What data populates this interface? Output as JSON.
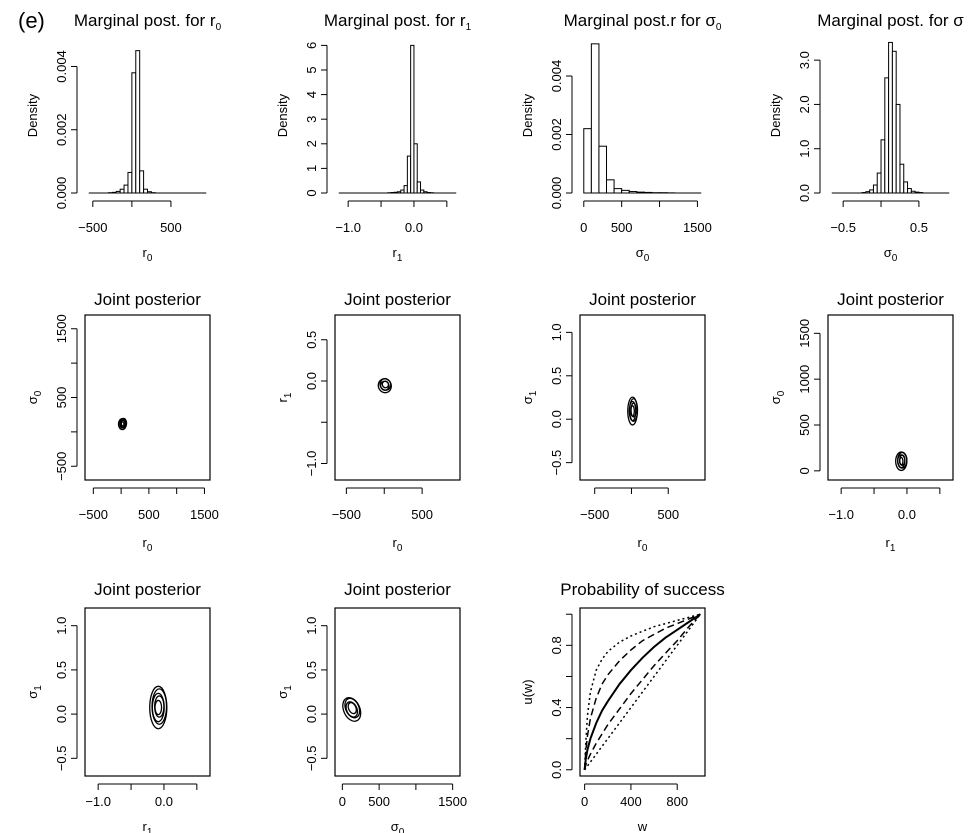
{
  "figure": {
    "panel_label": "(e)",
    "colors": {
      "ink": "#000000",
      "background": "#ffffff"
    }
  },
  "chart_data": [
    {
      "id": "hist_r0",
      "type": "bar",
      "title": "Marginal post. for r",
      "title_sub": "0",
      "xlabel": "r",
      "xlabel_sub": "0",
      "ylabel": "Density",
      "xlim": [
        -600,
        1000
      ],
      "ylim": [
        0,
        0.0049
      ],
      "xticks": [
        -500,
        0,
        500
      ],
      "xtick_labels": [
        "−500",
        "",
        "500"
      ],
      "yticks": [
        0,
        0.002,
        0.004
      ],
      "ytick_labels": [
        "0.000",
        "0.002",
        "0.004"
      ],
      "bin_width": 50,
      "bins": [
        -300,
        -250,
        -200,
        -150,
        -100,
        -50,
        0,
        50,
        100,
        150,
        200,
        250
      ],
      "values": [
        1e-05,
        2e-05,
        5e-05,
        0.00012,
        0.00025,
        0.00065,
        0.0038,
        0.0045,
        0.0007,
        0.00012,
        4e-05,
        1e-05
      ]
    },
    {
      "id": "hist_r1",
      "type": "bar",
      "title": "Marginal post. for r",
      "title_sub": "1",
      "xlabel": "r",
      "xlabel_sub": "1",
      "ylabel": "Density",
      "xlim": [
        -1.2,
        0.7
      ],
      "ylim": [
        0,
        6.3
      ],
      "xticks": [
        -1.0,
        -0.5,
        0,
        0.5
      ],
      "xtick_labels": [
        "−1.0",
        "",
        "0.0",
        ""
      ],
      "yticks": [
        0,
        1,
        2,
        3,
        4,
        5,
        6
      ],
      "ytick_labels": [
        "0",
        "1",
        "2",
        "3",
        "4",
        "5",
        "6"
      ],
      "bin_width": 0.05,
      "bins": [
        -0.4,
        -0.35,
        -0.3,
        -0.25,
        -0.2,
        -0.15,
        -0.1,
        -0.05,
        0,
        0.05,
        0.1,
        0.15,
        0.2,
        0.25
      ],
      "values": [
        0.01,
        0.02,
        0.03,
        0.05,
        0.12,
        0.3,
        1.5,
        6.0,
        2.0,
        0.45,
        0.12,
        0.05,
        0.02,
        0.01
      ]
    },
    {
      "id": "hist_s0",
      "type": "bar",
      "title": "Marginal post.r for  σ",
      "title_sub": "0",
      "xlabel": "σ",
      "xlabel_sub": "0",
      "ylabel": "Density",
      "xlim": [
        -50,
        1600
      ],
      "ylim": [
        0,
        0.0053
      ],
      "xticks": [
        0,
        500,
        1000,
        1500
      ],
      "xtick_labels": [
        "0",
        "500",
        "",
        "1500"
      ],
      "yticks": [
        0,
        0.002,
        0.004
      ],
      "ytick_labels": [
        "0.000",
        "0.002",
        "0.004"
      ],
      "bin_width": 100,
      "bins": [
        0,
        100,
        200,
        300,
        400,
        500,
        600,
        700,
        800,
        900,
        1000,
        1100
      ],
      "values": [
        0.0022,
        0.0051,
        0.0016,
        0.00045,
        0.00015,
        9e-05,
        5e-05,
        3e-05,
        2e-05,
        1e-05,
        1e-05,
        5e-06
      ]
    },
    {
      "id": "hist_s1",
      "type": "bar",
      "title": "Marginal post. for  σ",
      "title_sub": "",
      "xlabel": "σ",
      "xlabel_sub": "0",
      "ylabel": "Density",
      "xlim": [
        -0.7,
        0.95
      ],
      "ylim": [
        0,
        3.5
      ],
      "xticks": [
        -0.5,
        0,
        0.5
      ],
      "xtick_labels": [
        "−0.5",
        "",
        "0.5"
      ],
      "yticks": [
        0,
        1,
        2,
        3
      ],
      "ytick_labels": [
        "0.0",
        "1.0",
        "2.0",
        "3.0"
      ],
      "bin_width": 0.05,
      "bins": [
        -0.25,
        -0.2,
        -0.15,
        -0.1,
        -0.05,
        0,
        0.05,
        0.1,
        0.15,
        0.2,
        0.25,
        0.3,
        0.35,
        0.4,
        0.45,
        0.5
      ],
      "values": [
        0.01,
        0.03,
        0.07,
        0.18,
        0.45,
        1.2,
        2.6,
        3.4,
        3.2,
        2.0,
        0.65,
        0.25,
        0.1,
        0.04,
        0.02,
        0.01
      ]
    },
    {
      "id": "joint_r0_s0",
      "type": "contour",
      "title": "Joint posterior",
      "xlabel": "r",
      "xlabel_sub": "0",
      "ylabel": "σ",
      "ylabel_sub": "0",
      "xlim": [
        -650,
        1600
      ],
      "ylim": [
        -700,
        1700
      ],
      "xticks": [
        -500,
        0,
        500,
        1000,
        1500
      ],
      "xtick_labels": [
        "−500",
        "",
        "500",
        "",
        "1500"
      ],
      "yticks": [
        -500,
        0,
        500,
        1000,
        1500
      ],
      "ytick_labels": [
        "−500",
        "",
        "500",
        "",
        "1500"
      ],
      "center": [
        30,
        120
      ],
      "radii": [
        [
          70,
          80
        ],
        [
          58,
          68
        ],
        [
          48,
          56
        ],
        [
          38,
          44
        ],
        [
          28,
          32
        ]
      ],
      "skew": 0
    },
    {
      "id": "joint_r0_r1",
      "type": "contour",
      "title": "Joint posterior",
      "xlabel": "r",
      "xlabel_sub": "0",
      "ylabel": "r",
      "ylabel_sub": "1",
      "xlim": [
        -650,
        1000
      ],
      "ylim": [
        -1.2,
        0.8
      ],
      "xticks": [
        -500,
        0,
        500
      ],
      "xtick_labels": [
        "−500",
        "",
        "500"
      ],
      "yticks": [
        -1.0,
        -0.5,
        0,
        0.5
      ],
      "ytick_labels": [
        "−1.0",
        "",
        "0.0",
        "0.5"
      ],
      "center": [
        10,
        -0.05
      ],
      "radii": [
        [
          85,
          0.085
        ],
        [
          70,
          0.07
        ],
        [
          55,
          0.055
        ],
        [
          40,
          0.04
        ]
      ],
      "skew": -0.5
    },
    {
      "id": "joint_r0_s1",
      "type": "contour",
      "title": "Joint posterior",
      "xlabel": "r",
      "xlabel_sub": "0",
      "ylabel": "σ",
      "ylabel_sub": "1",
      "xlim": [
        -700,
        1000
      ],
      "ylim": [
        -0.7,
        1.2
      ],
      "xticks": [
        -500,
        0,
        500
      ],
      "xtick_labels": [
        "−500",
        "",
        "500"
      ],
      "yticks": [
        -0.5,
        0,
        0.5,
        1.0
      ],
      "ytick_labels": [
        "−0.5",
        "0.0",
        "0.5",
        "1.0"
      ],
      "center": [
        20,
        0.1
      ],
      "radii": [
        [
          65,
          0.16
        ],
        [
          54,
          0.13
        ],
        [
          44,
          0.11
        ],
        [
          34,
          0.08
        ],
        [
          24,
          0.06
        ]
      ],
      "skew": 0
    },
    {
      "id": "joint_r1_s0",
      "type": "contour",
      "title": "Joint posterior",
      "xlabel": "r",
      "xlabel_sub": "1",
      "ylabel": "σ",
      "ylabel_sub": "0",
      "xlim": [
        -1.2,
        0.7
      ],
      "ylim": [
        -100,
        1700
      ],
      "xticks": [
        -1.0,
        -0.5,
        0,
        0.5
      ],
      "xtick_labels": [
        "−1.0",
        "",
        "0.0",
        ""
      ],
      "yticks": [
        0,
        500,
        1000,
        1500
      ],
      "ytick_labels": [
        "0",
        "500",
        "1000",
        "1500"
      ],
      "center": [
        -0.08,
        110
      ],
      "radii": [
        [
          0.085,
          100
        ],
        [
          0.07,
          85
        ],
        [
          0.055,
          70
        ],
        [
          0.04,
          55
        ],
        [
          0.025,
          40
        ]
      ],
      "skew": 0
    },
    {
      "id": "joint_r1_s1",
      "type": "contour",
      "title": "Joint posterior",
      "xlabel": "r",
      "xlabel_sub": "1",
      "ylabel": "σ",
      "ylabel_sub": "1",
      "xlim": [
        -1.2,
        0.7
      ],
      "ylim": [
        -0.7,
        1.2
      ],
      "xticks": [
        -1.0,
        -0.5,
        0,
        0.5
      ],
      "xtick_labels": [
        "−1.0",
        "",
        "0.0",
        ""
      ],
      "yticks": [
        -0.5,
        0,
        0.5,
        1.0
      ],
      "ytick_labels": [
        "−0.5",
        "0.0",
        "0.5",
        "1.0"
      ],
      "center": [
        -0.08,
        0.08
      ],
      "radii": [
        [
          0.13,
          0.24
        ],
        [
          0.11,
          0.2
        ],
        [
          0.09,
          0.16
        ],
        [
          0.07,
          0.12
        ],
        [
          0.05,
          0.08
        ]
      ],
      "skew": 0
    },
    {
      "id": "joint_s0_s1",
      "type": "contour",
      "title": "Joint posterior",
      "xlabel": "σ",
      "xlabel_sub": "0",
      "ylabel": "σ",
      "ylabel_sub": "1",
      "xlim": [
        -100,
        1600
      ],
      "ylim": [
        -0.7,
        1.2
      ],
      "xticks": [
        0,
        500,
        1000,
        1500
      ],
      "xtick_labels": [
        "0",
        "500",
        "",
        "1500"
      ],
      "yticks": [
        -0.5,
        0,
        0.5,
        1.0
      ],
      "ytick_labels": [
        "−0.5",
        "0.0",
        "0.5",
        "1.0"
      ],
      "center": [
        130,
        0.06
      ],
      "radii": [
        [
          110,
          0.14
        ],
        [
          90,
          0.115
        ],
        [
          70,
          0.09
        ],
        [
          50,
          0.065
        ]
      ],
      "skew": -0.6
    },
    {
      "id": "prob_success",
      "type": "line",
      "title": "Probability of success",
      "xlabel": "w",
      "ylabel": "u(w)",
      "xlim": [
        -40,
        1040
      ],
      "ylim": [
        -0.04,
        1.04
      ],
      "xticks": [
        0,
        400,
        800
      ],
      "xtick_labels": [
        "0",
        "400",
        "800"
      ],
      "yticks": [
        0,
        0.2,
        0.4,
        0.6,
        0.8,
        1.0
      ],
      "ytick_labels": [
        "0.0",
        "",
        "0.4",
        "",
        "0.8",
        ""
      ],
      "x": [
        0,
        10,
        25,
        50,
        100,
        150,
        200,
        300,
        400,
        500,
        600,
        700,
        800,
        900,
        1000
      ],
      "series": [
        {
          "style": "dotted",
          "y": [
            0,
            0.18,
            0.35,
            0.5,
            0.64,
            0.71,
            0.76,
            0.82,
            0.86,
            0.89,
            0.92,
            0.94,
            0.96,
            0.98,
            1.0
          ]
        },
        {
          "style": "dashed",
          "y": [
            0,
            0.12,
            0.22,
            0.33,
            0.46,
            0.55,
            0.61,
            0.7,
            0.77,
            0.83,
            0.87,
            0.91,
            0.94,
            0.97,
            1.0
          ]
        },
        {
          "style": "solid",
          "y": [
            0,
            0.07,
            0.13,
            0.2,
            0.3,
            0.38,
            0.44,
            0.55,
            0.64,
            0.72,
            0.79,
            0.85,
            0.9,
            0.95,
            1.0
          ]
        },
        {
          "style": "dashed",
          "y": [
            0,
            0.03,
            0.06,
            0.1,
            0.17,
            0.23,
            0.29,
            0.39,
            0.49,
            0.58,
            0.67,
            0.75,
            0.83,
            0.92,
            1.0
          ]
        },
        {
          "style": "dotted",
          "y": [
            0,
            0.01,
            0.025,
            0.05,
            0.1,
            0.15,
            0.2,
            0.3,
            0.4,
            0.5,
            0.6,
            0.7,
            0.8,
            0.9,
            1.0
          ]
        }
      ]
    }
  ]
}
